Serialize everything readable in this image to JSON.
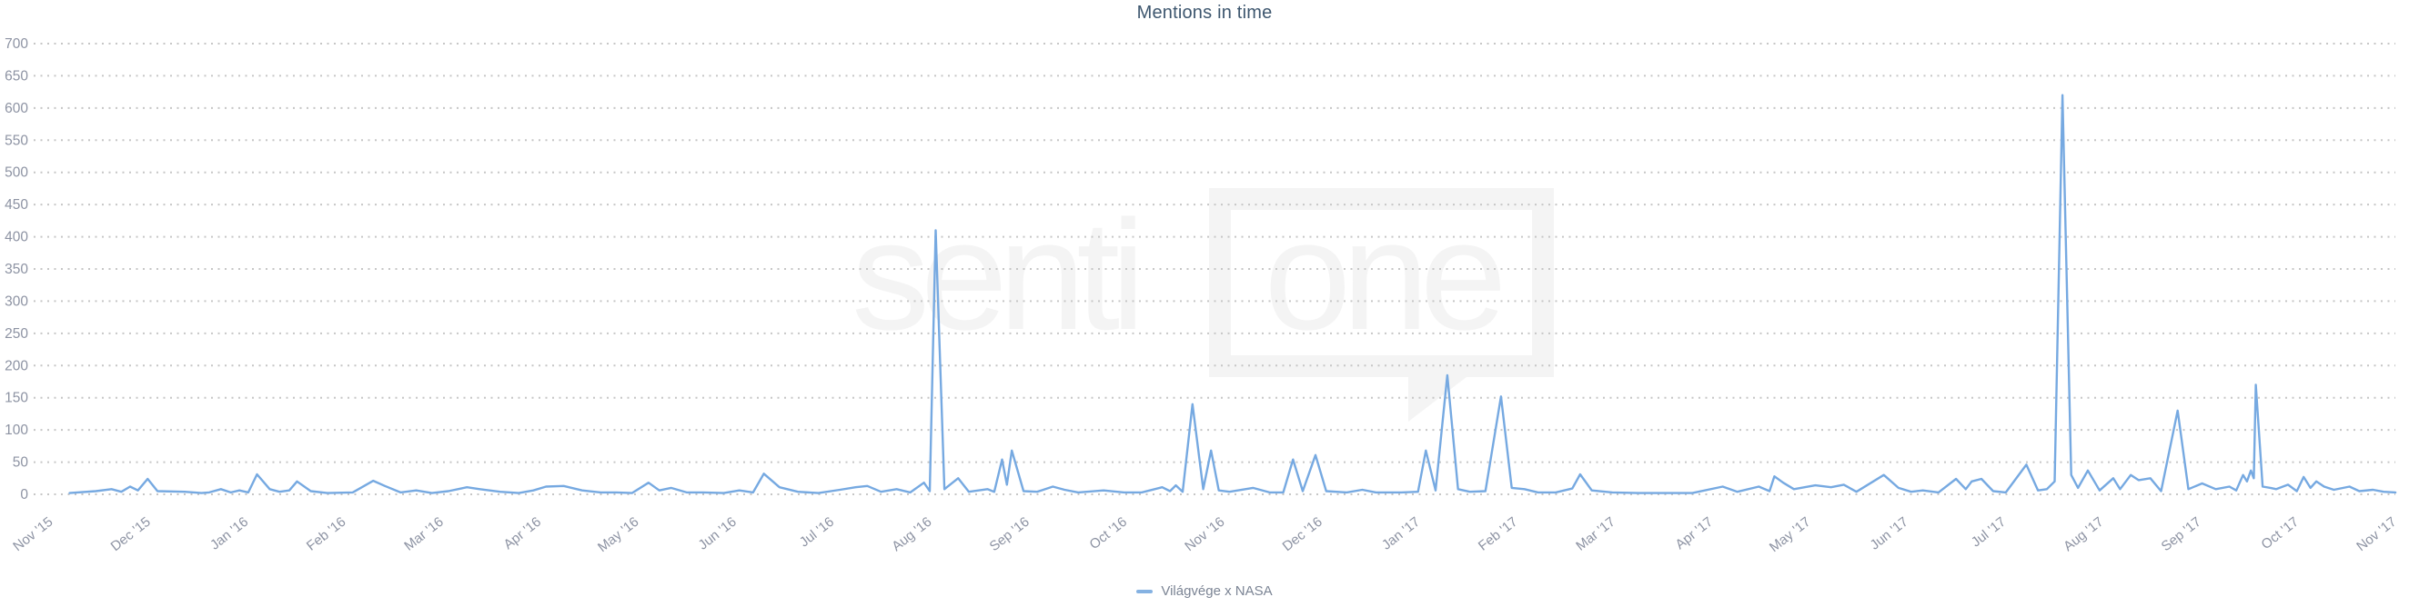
{
  "page": {
    "title": "Mentions in time"
  },
  "legend": {
    "items": [
      {
        "label": "Világvége x NASA",
        "color": "#85b2e2"
      }
    ]
  },
  "watermark": {
    "left": "senti",
    "right": "one"
  },
  "colors": {
    "background": "#ffffff",
    "line": "#76a9e1",
    "grid": "#c6c6c6",
    "axis_text": "#8d93a3",
    "title_text": "#3d566e",
    "legend_text": "#7b8494",
    "watermark": "#f4f4f4"
  },
  "chart_data": {
    "type": "line",
    "title": "Mentions in time",
    "xlabel": "",
    "ylabel": "",
    "grid": "dotted-horizontal",
    "legend_position": "bottom-center",
    "ylim": [
      0,
      700
    ],
    "y_ticks": [
      0,
      50,
      100,
      150,
      200,
      250,
      300,
      350,
      400,
      450,
      500,
      550,
      600,
      650,
      700
    ],
    "x_tick_labels": [
      "Nov '15",
      "Dec '15",
      "Jan '16",
      "Feb '16",
      "Mar '16",
      "Apr '16",
      "May '16",
      "Jun '16",
      "Jul '16",
      "Aug '16",
      "Sep '16",
      "Oct '16",
      "Nov '16",
      "Dec '16",
      "Jan '17",
      "Feb '17",
      "Mar '17",
      "Apr '17",
      "May '17",
      "Jun '17",
      "Jul '17",
      "Aug '17",
      "Sep '17",
      "Oct '17",
      "Nov '17"
    ],
    "x_unit": "months after Nov 2015 tick (fractional, daily series)",
    "series": [
      {
        "name": "Világvége x NASA",
        "color": "#76a9e1",
        "points": [
          [
            0.2,
            2
          ],
          [
            0.47,
            5
          ],
          [
            0.63,
            8
          ],
          [
            0.73,
            4
          ],
          [
            0.82,
            12
          ],
          [
            0.9,
            6
          ],
          [
            1.0,
            24
          ],
          [
            1.1,
            5
          ],
          [
            1.38,
            4
          ],
          [
            1.55,
            2
          ],
          [
            1.63,
            3
          ],
          [
            1.75,
            8
          ],
          [
            1.85,
            3
          ],
          [
            1.94,
            6
          ],
          [
            2.03,
            3
          ],
          [
            2.12,
            31
          ],
          [
            2.25,
            8
          ],
          [
            2.35,
            4
          ],
          [
            2.45,
            6
          ],
          [
            2.53,
            20
          ],
          [
            2.67,
            5
          ],
          [
            2.84,
            2
          ],
          [
            3.1,
            3
          ],
          [
            3.31,
            21
          ],
          [
            3.43,
            13
          ],
          [
            3.59,
            3
          ],
          [
            3.75,
            6
          ],
          [
            3.91,
            2
          ],
          [
            4.08,
            5
          ],
          [
            4.27,
            11
          ],
          [
            4.4,
            8
          ],
          [
            4.61,
            4
          ],
          [
            4.8,
            2
          ],
          [
            4.95,
            6
          ],
          [
            5.08,
            12
          ],
          [
            5.26,
            13
          ],
          [
            5.45,
            6
          ],
          [
            5.64,
            3
          ],
          [
            5.8,
            3
          ],
          [
            5.96,
            2
          ],
          [
            6.13,
            18
          ],
          [
            6.24,
            6
          ],
          [
            6.36,
            10
          ],
          [
            6.52,
            3
          ],
          [
            6.69,
            3
          ],
          [
            6.9,
            2
          ],
          [
            7.06,
            6
          ],
          [
            7.2,
            3
          ],
          [
            7.31,
            32
          ],
          [
            7.47,
            11
          ],
          [
            7.66,
            4
          ],
          [
            7.87,
            2
          ],
          [
            8.09,
            7
          ],
          [
            8.25,
            11
          ],
          [
            8.37,
            13
          ],
          [
            8.51,
            4
          ],
          [
            8.67,
            8
          ],
          [
            8.81,
            3
          ],
          [
            8.95,
            18
          ],
          [
            9.01,
            5
          ],
          [
            9.07,
            410
          ],
          [
            9.16,
            8
          ],
          [
            9.3,
            25
          ],
          [
            9.41,
            4
          ],
          [
            9.6,
            8
          ],
          [
            9.67,
            4
          ],
          [
            9.75,
            54
          ],
          [
            9.8,
            15
          ],
          [
            9.85,
            68
          ],
          [
            9.97,
            5
          ],
          [
            10.11,
            4
          ],
          [
            10.27,
            12
          ],
          [
            10.39,
            7
          ],
          [
            10.53,
            3
          ],
          [
            10.79,
            6
          ],
          [
            11.0,
            3
          ],
          [
            11.18,
            3
          ],
          [
            11.39,
            11
          ],
          [
            11.47,
            5
          ],
          [
            11.53,
            14
          ],
          [
            11.6,
            4
          ],
          [
            11.7,
            140
          ],
          [
            11.81,
            8
          ],
          [
            11.89,
            68
          ],
          [
            11.97,
            6
          ],
          [
            12.08,
            4
          ],
          [
            12.32,
            10
          ],
          [
            12.49,
            3
          ],
          [
            12.63,
            3
          ],
          [
            12.73,
            54
          ],
          [
            12.83,
            5
          ],
          [
            12.96,
            61
          ],
          [
            13.07,
            5
          ],
          [
            13.28,
            3
          ],
          [
            13.44,
            7
          ],
          [
            13.58,
            3
          ],
          [
            13.84,
            3
          ],
          [
            14.01,
            4
          ],
          [
            14.09,
            68
          ],
          [
            14.19,
            6
          ],
          [
            14.31,
            185
          ],
          [
            14.42,
            8
          ],
          [
            14.54,
            4
          ],
          [
            14.7,
            5
          ],
          [
            14.86,
            152
          ],
          [
            14.97,
            10
          ],
          [
            15.1,
            8
          ],
          [
            15.24,
            3
          ],
          [
            15.42,
            3
          ],
          [
            15.59,
            9
          ],
          [
            15.67,
            31
          ],
          [
            15.79,
            6
          ],
          [
            16.0,
            3
          ],
          [
            16.26,
            2
          ],
          [
            16.54,
            2
          ],
          [
            16.82,
            2
          ],
          [
            17.13,
            12
          ],
          [
            17.28,
            4
          ],
          [
            17.5,
            12
          ],
          [
            17.61,
            5
          ],
          [
            17.66,
            28
          ],
          [
            17.75,
            18
          ],
          [
            17.86,
            8
          ],
          [
            18.08,
            14
          ],
          [
            18.24,
            11
          ],
          [
            18.37,
            15
          ],
          [
            18.5,
            4
          ],
          [
            18.78,
            30
          ],
          [
            18.93,
            10
          ],
          [
            19.06,
            4
          ],
          [
            19.18,
            6
          ],
          [
            19.34,
            3
          ],
          [
            19.52,
            24
          ],
          [
            19.62,
            8
          ],
          [
            19.68,
            20
          ],
          [
            19.78,
            24
          ],
          [
            19.9,
            5
          ],
          [
            20.03,
            3
          ],
          [
            20.24,
            46
          ],
          [
            20.36,
            6
          ],
          [
            20.45,
            8
          ],
          [
            20.53,
            20
          ],
          [
            20.61,
            620
          ],
          [
            20.7,
            30
          ],
          [
            20.77,
            10
          ],
          [
            20.87,
            37
          ],
          [
            20.99,
            6
          ],
          [
            21.13,
            25
          ],
          [
            21.2,
            8
          ],
          [
            21.31,
            30
          ],
          [
            21.39,
            22
          ],
          [
            21.51,
            25
          ],
          [
            21.62,
            5
          ],
          [
            21.79,
            130
          ],
          [
            21.9,
            8
          ],
          [
            22.04,
            17
          ],
          [
            22.18,
            8
          ],
          [
            22.32,
            12
          ],
          [
            22.39,
            6
          ],
          [
            22.46,
            30
          ],
          [
            22.5,
            20
          ],
          [
            22.54,
            37
          ],
          [
            22.57,
            25
          ],
          [
            22.59,
            170
          ],
          [
            22.66,
            12
          ],
          [
            22.74,
            10
          ],
          [
            22.8,
            8
          ],
          [
            22.92,
            15
          ],
          [
            23.01,
            5
          ],
          [
            23.08,
            27
          ],
          [
            23.15,
            10
          ],
          [
            23.21,
            20
          ],
          [
            23.29,
            12
          ],
          [
            23.39,
            7
          ],
          [
            23.55,
            12
          ],
          [
            23.65,
            5
          ],
          [
            23.79,
            7
          ],
          [
            23.9,
            4
          ],
          [
            24.02,
            3
          ]
        ]
      }
    ]
  }
}
